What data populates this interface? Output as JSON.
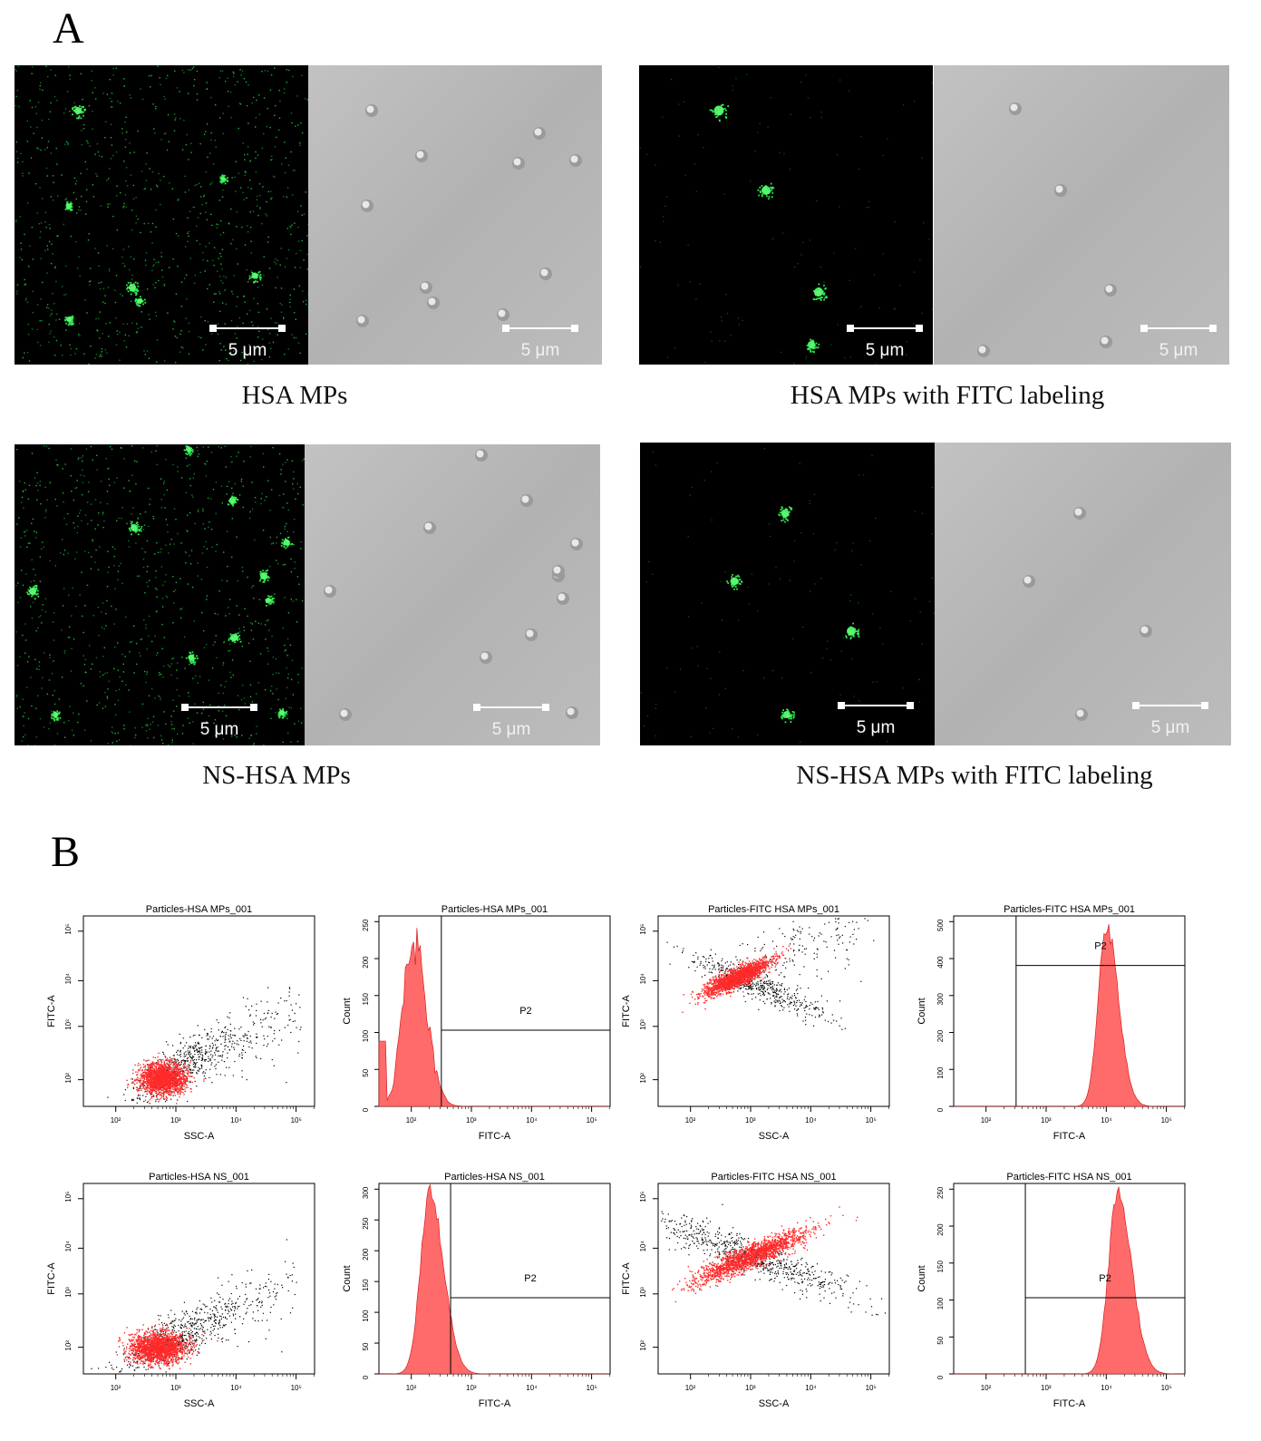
{
  "panel_a": {
    "letter": "A",
    "scale_label": "5 μm",
    "captions": [
      "HSA MPs",
      "HSA MPs with FITC labeling",
      "NS-HSA MPs",
      "NS-HSA MPs with FITC labeling"
    ]
  },
  "panel_b": {
    "letter": "B",
    "tick_labels": [
      "10²",
      "10³",
      "10⁴",
      "10⁵"
    ],
    "colors": {
      "gated": "#ff2a2a",
      "ungated": "#000000",
      "hist_fill": "#ff6a6a"
    },
    "plots": [
      {
        "type": "scatter",
        "title": "Particles-HSA MPs_001",
        "xlabel": "SSC-A",
        "ylabel": "FITC-A"
      },
      {
        "type": "histogram",
        "title": "Particles-HSA MPs_001",
        "xlabel": "FITC-A",
        "ylabel": "Count",
        "gate": "P2",
        "y_ticks": [
          "0",
          "50",
          "100",
          "150",
          "200",
          "250"
        ]
      },
      {
        "type": "scatter",
        "title": "Particles-FITC HSA MPs_001",
        "xlabel": "SSC-A",
        "ylabel": "FITC-A"
      },
      {
        "type": "histogram",
        "title": "Particles-FITC HSA MPs_001",
        "xlabel": "FITC-A",
        "ylabel": "Count",
        "gate": "P2",
        "y_ticks": [
          "0",
          "100",
          "200",
          "300",
          "400",
          "500"
        ]
      },
      {
        "type": "scatter",
        "title": "Particles-HSA NS_001",
        "xlabel": "SSC-A",
        "ylabel": "FITC-A"
      },
      {
        "type": "histogram",
        "title": "Particles-HSA NS_001",
        "xlabel": "FITC-A",
        "ylabel": "Count",
        "gate": "P2",
        "y_ticks": [
          "0",
          "50",
          "100",
          "150",
          "200",
          "250",
          "300"
        ]
      },
      {
        "type": "scatter",
        "title": "Particles-FITC HSA NS_001",
        "xlabel": "SSC-A",
        "ylabel": "FITC-A"
      },
      {
        "type": "histogram",
        "title": "Particles-FITC HSA NS_001",
        "xlabel": "FITC-A",
        "ylabel": "Count",
        "gate": "P2",
        "y_ticks": [
          "0",
          "50",
          "100",
          "150",
          "200",
          "250"
        ]
      }
    ]
  }
}
